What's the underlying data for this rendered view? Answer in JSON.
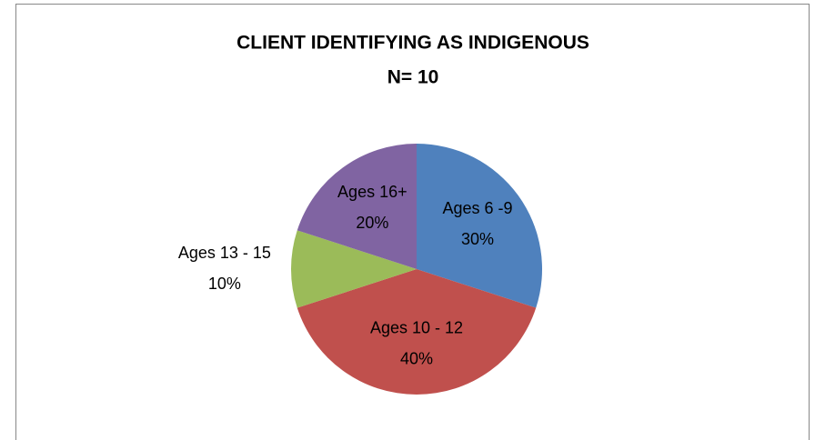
{
  "chart_data": {
    "type": "pie",
    "title": "CLIENT IDENTIFYING AS INDIGENOUS",
    "subtitle": "N= 10",
    "categories": [
      "Ages 6 -9",
      "Ages 10 - 12",
      "Ages 13 - 15",
      "Ages 16+"
    ],
    "values": [
      30,
      40,
      10,
      20
    ],
    "value_labels": [
      "30%",
      "40%",
      "10%",
      "20%"
    ],
    "colors": [
      "#4f81bd",
      "#c0504d",
      "#9bbb59",
      "#8064a2"
    ]
  }
}
